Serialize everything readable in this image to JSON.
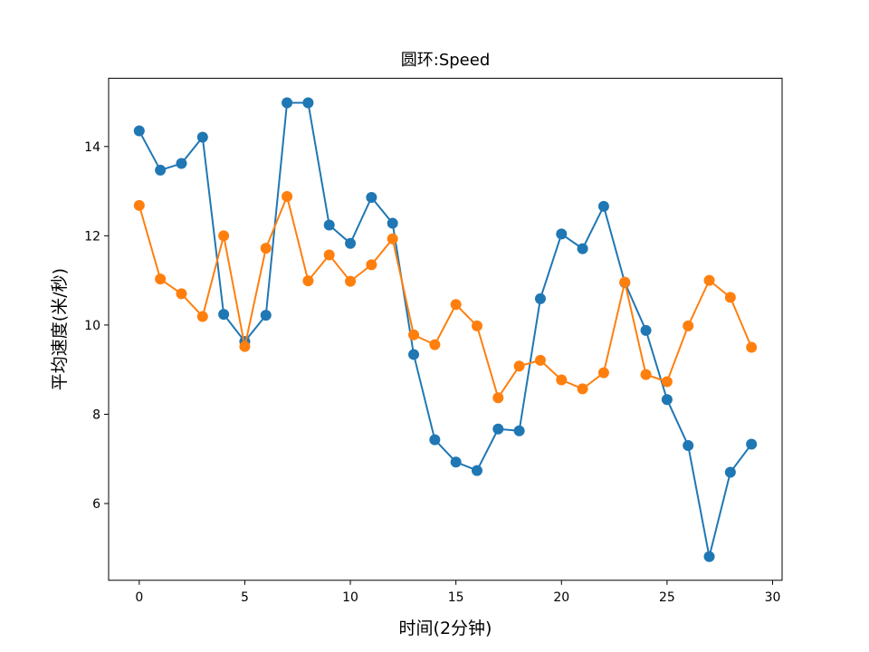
{
  "chart_data": {
    "type": "line",
    "title": "圆环:Speed",
    "xlabel": "时间(2分钟)",
    "ylabel": "平均速度(米/秒)",
    "xlim": [
      -1.45,
      30.45
    ],
    "ylim": [
      4.28,
      15.53
    ],
    "xticks": [
      0,
      5,
      10,
      15,
      20,
      25,
      30
    ],
    "yticks": [
      6,
      8,
      10,
      12,
      14
    ],
    "grid": false,
    "markers": true,
    "x": [
      0,
      1,
      2,
      3,
      4,
      5,
      6,
      7,
      8,
      9,
      10,
      11,
      12,
      13,
      14,
      15,
      16,
      17,
      18,
      19,
      20,
      21,
      22,
      23,
      24,
      25,
      26,
      27,
      28,
      29
    ],
    "series": [
      {
        "color": "#1f77b4",
        "values": [
          14.35,
          13.47,
          13.62,
          14.21,
          10.24,
          9.63,
          10.22,
          14.98,
          14.98,
          12.24,
          11.83,
          12.86,
          12.28,
          9.34,
          7.43,
          6.93,
          6.74,
          7.67,
          7.63,
          10.59,
          12.04,
          11.71,
          12.66,
          10.95,
          9.88,
          8.33,
          7.3,
          4.81,
          6.7,
          7.33
        ]
      },
      {
        "color": "#ff7f0e",
        "values": [
          12.68,
          11.03,
          10.7,
          10.19,
          12.0,
          9.52,
          11.72,
          12.88,
          10.99,
          11.57,
          10.98,
          11.35,
          11.93,
          9.78,
          9.56,
          10.46,
          9.98,
          8.37,
          9.08,
          9.21,
          8.77,
          8.57,
          8.93,
          10.96,
          8.89,
          8.73,
          9.98,
          11.0,
          10.62,
          9.5
        ]
      }
    ]
  }
}
